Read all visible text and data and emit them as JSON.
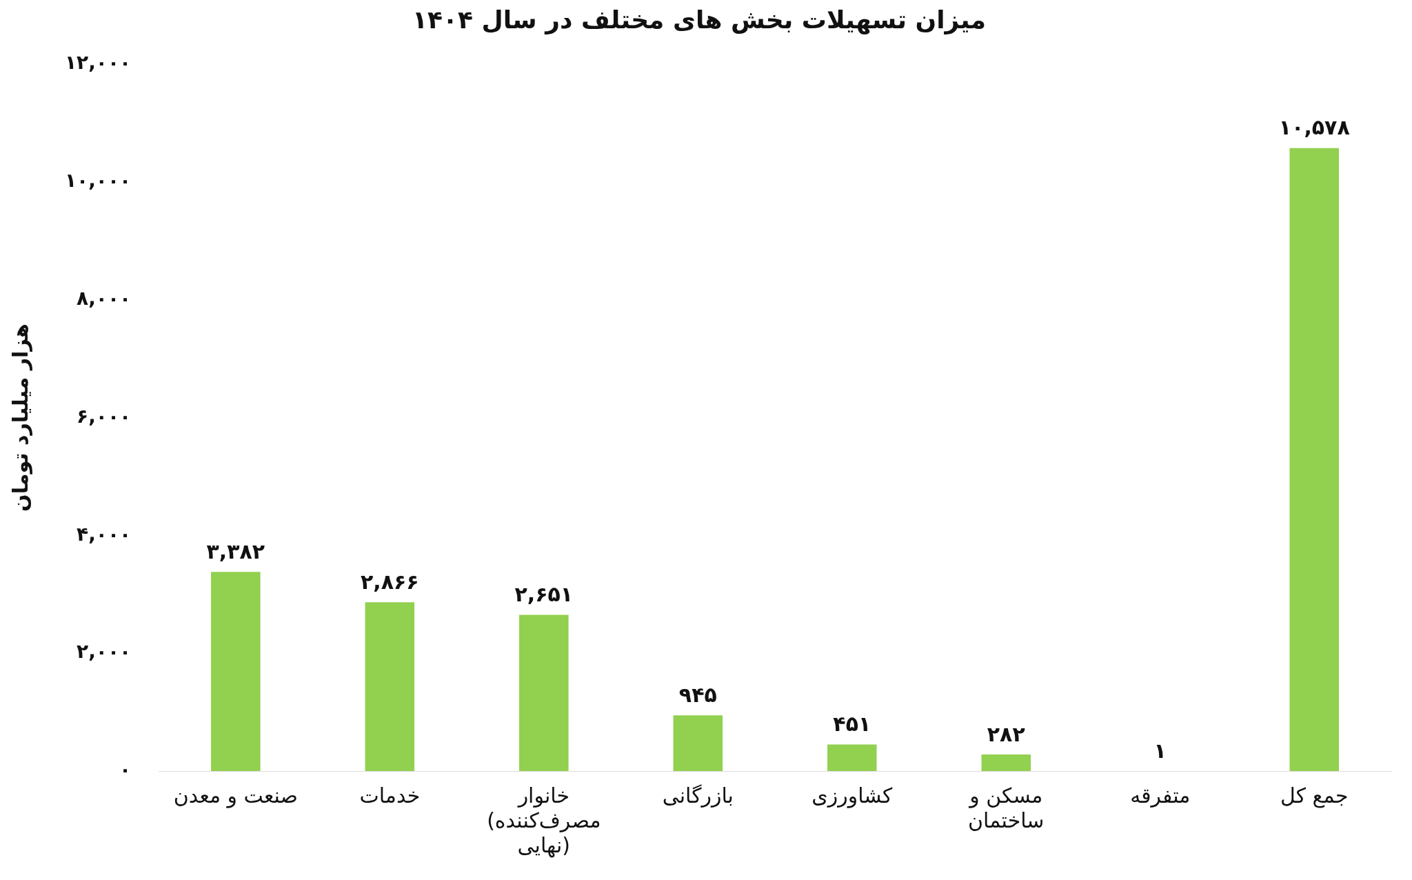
{
  "chart_data": {
    "type": "bar",
    "title": "میزان تسهیلات بخش های مختلف در سال ۱۴۰۴",
    "ylabel": "هزار میلیارد تومان",
    "categories": [
      "صنعت و معدن",
      "خدمات",
      "خانوار (مصرف‌کننده نهایی)",
      "بازرگانی",
      "کشاورزی",
      "مسکن و ساختمان",
      "متفرقه",
      "جمع کل"
    ],
    "values": [
      3382,
      2866,
      2651,
      945,
      451,
      282,
      1,
      10578
    ],
    "value_labels": [
      "۳,۳۸۲",
      "۲,۸۶۶",
      "۲,۶۵۱",
      "۹۴۵",
      "۴۵۱",
      "۲۸۲",
      "۱",
      "۱۰,۵۷۸"
    ],
    "color": "#92d050",
    "ylim": [
      0,
      12000
    ],
    "yticks": [
      {
        "value": 0,
        "label": "۰"
      },
      {
        "value": 2000,
        "label": "۲,۰۰۰"
      },
      {
        "value": 4000,
        "label": "۴,۰۰۰"
      },
      {
        "value": 6000,
        "label": "۶,۰۰۰"
      },
      {
        "value": 8000,
        "label": "۸,۰۰۰"
      },
      {
        "value": 10000,
        "label": "۱۰,۰۰۰"
      },
      {
        "value": 12000,
        "label": "۱۲,۰۰۰"
      }
    ],
    "grid": false,
    "legend": false
  }
}
